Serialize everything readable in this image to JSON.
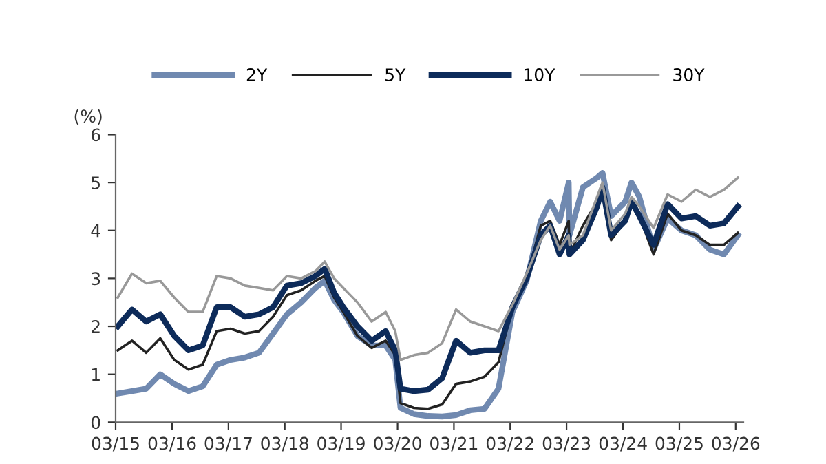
{
  "chart_data": {
    "type": "line",
    "ylabel": "(%)",
    "x": [
      "2015-03",
      "2015-06",
      "2015-09",
      "2015-12",
      "2016-03",
      "2016-06",
      "2016-09",
      "2016-12",
      "2017-03",
      "2017-06",
      "2017-09",
      "2017-12",
      "2018-03",
      "2018-06",
      "2018-09",
      "2018-11",
      "2019-01",
      "2019-03",
      "2019-06",
      "2019-09",
      "2019-12",
      "2020-02",
      "2020-03-20",
      "2020-06",
      "2020-09",
      "2020-12",
      "2021-03",
      "2021-06",
      "2021-09",
      "2021-12",
      "2022-03",
      "2022-06",
      "2022-09",
      "2022-11",
      "2023-01",
      "2023-03",
      "2023-03-20",
      "2023-06",
      "2023-09",
      "2023-10-20",
      "2023-12",
      "2024-03",
      "2024-04-25",
      "2024-06",
      "2024-09",
      "2024-12",
      "2025-03",
      "2025-06",
      "2025-09",
      "2025-12",
      "2026-03"
    ],
    "series": [
      {
        "name": "2Y",
        "color": "#7089b0",
        "values": [
          0.6,
          0.65,
          0.7,
          1.0,
          0.8,
          0.65,
          0.75,
          1.2,
          1.3,
          1.35,
          1.45,
          1.85,
          2.25,
          2.5,
          2.8,
          2.95,
          2.55,
          2.3,
          1.8,
          1.6,
          1.6,
          1.3,
          0.3,
          0.17,
          0.13,
          0.12,
          0.15,
          0.25,
          0.28,
          0.7,
          2.3,
          2.95,
          4.2,
          4.6,
          4.2,
          5.0,
          3.9,
          4.9,
          5.1,
          5.2,
          4.3,
          4.6,
          5.0,
          4.7,
          3.6,
          4.25,
          4.0,
          3.9,
          3.6,
          3.5,
          3.9
        ]
      },
      {
        "name": "5Y",
        "color": "#222222",
        "values": [
          1.5,
          1.7,
          1.45,
          1.75,
          1.3,
          1.1,
          1.2,
          1.9,
          1.95,
          1.85,
          1.9,
          2.2,
          2.65,
          2.75,
          2.95,
          3.05,
          2.6,
          2.3,
          1.8,
          1.55,
          1.7,
          1.4,
          0.4,
          0.3,
          0.28,
          0.37,
          0.8,
          0.85,
          0.95,
          1.25,
          2.4,
          3.0,
          4.1,
          4.2,
          3.7,
          4.2,
          3.5,
          4.1,
          4.6,
          4.8,
          3.8,
          4.2,
          4.6,
          4.3,
          3.5,
          4.35,
          4.0,
          3.9,
          3.7,
          3.7,
          3.95
        ]
      },
      {
        "name": "10Y",
        "color": "#0d2b5a",
        "values": [
          2.0,
          2.35,
          2.1,
          2.25,
          1.8,
          1.5,
          1.6,
          2.4,
          2.4,
          2.2,
          2.25,
          2.4,
          2.85,
          2.9,
          3.05,
          3.2,
          2.7,
          2.4,
          2.0,
          1.7,
          1.9,
          1.5,
          0.7,
          0.65,
          0.68,
          0.92,
          1.7,
          1.45,
          1.5,
          1.5,
          2.4,
          3.0,
          3.9,
          4.1,
          3.5,
          3.9,
          3.5,
          3.8,
          4.5,
          4.9,
          3.9,
          4.2,
          4.6,
          4.3,
          3.7,
          4.55,
          4.25,
          4.3,
          4.1,
          4.15,
          4.5
        ]
      },
      {
        "name": "30Y",
        "color": "#999999",
        "values": [
          2.6,
          3.1,
          2.9,
          2.95,
          2.6,
          2.3,
          2.3,
          3.05,
          3.0,
          2.85,
          2.8,
          2.75,
          3.05,
          3.0,
          3.15,
          3.35,
          3.0,
          2.8,
          2.5,
          2.1,
          2.3,
          1.9,
          1.3,
          1.4,
          1.45,
          1.65,
          2.35,
          2.1,
          2.0,
          1.9,
          2.45,
          3.1,
          3.8,
          4.1,
          3.6,
          3.9,
          3.7,
          3.9,
          4.7,
          5.0,
          4.0,
          4.35,
          4.7,
          4.5,
          4.05,
          4.75,
          4.6,
          4.85,
          4.7,
          4.85,
          5.1
        ]
      }
    ],
    "xlim": [
      "2015-03-01",
      "2026-04-20"
    ],
    "xticks": [
      {
        "value": "2015-03-01",
        "label": "03/15"
      },
      {
        "value": "2016-03-01",
        "label": "03/16"
      },
      {
        "value": "2017-03-01",
        "label": "03/17"
      },
      {
        "value": "2018-03-01",
        "label": "03/18"
      },
      {
        "value": "2019-03-01",
        "label": "03/19"
      },
      {
        "value": "2020-03-01",
        "label": "03/20"
      },
      {
        "value": "2021-03-01",
        "label": "03/21"
      },
      {
        "value": "2022-03-01",
        "label": "03/22"
      },
      {
        "value": "2023-03-01",
        "label": "03/23"
      },
      {
        "value": "2024-03-01",
        "label": "03/24"
      },
      {
        "value": "2025-03-01",
        "label": "03/25"
      },
      {
        "value": "2026-03-01",
        "label": "03/26"
      }
    ],
    "ylim": [
      0,
      6
    ],
    "yticks": [
      0,
      1,
      2,
      3,
      4,
      5,
      6
    ],
    "grid": false,
    "legend": "top",
    "marker": "none",
    "line_style": "solid"
  }
}
